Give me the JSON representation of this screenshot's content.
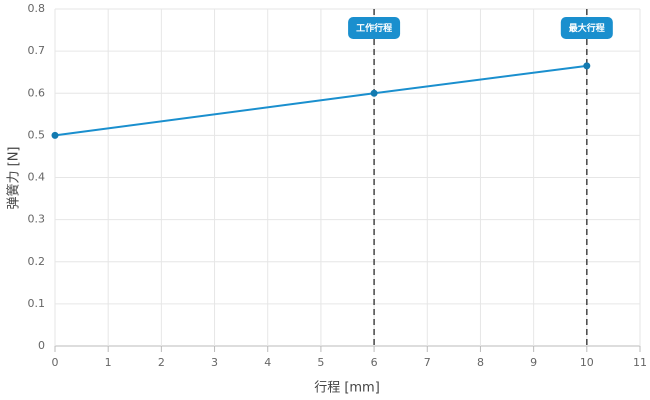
{
  "chart_data": {
    "type": "line",
    "x_label": "行程 [mm]",
    "y_label": "弹簧力 [N]",
    "x": [
      0,
      6,
      10
    ],
    "values": [
      0.5,
      0.6,
      0.665
    ],
    "color": "#1a8fce",
    "xlim": [
      0,
      11
    ],
    "xticks": [
      0,
      1,
      2,
      3,
      4,
      5,
      6,
      7,
      8,
      9,
      10,
      11
    ],
    "ylim": [
      0,
      0.8
    ],
    "yticks": [
      0,
      0.1,
      0.2,
      0.3,
      0.4,
      0.5,
      0.6,
      0.7,
      0.8
    ],
    "grid": true,
    "annotations": [
      {
        "x": 6,
        "label": "工作行程"
      },
      {
        "x": 10,
        "label": "最大行程"
      }
    ]
  }
}
